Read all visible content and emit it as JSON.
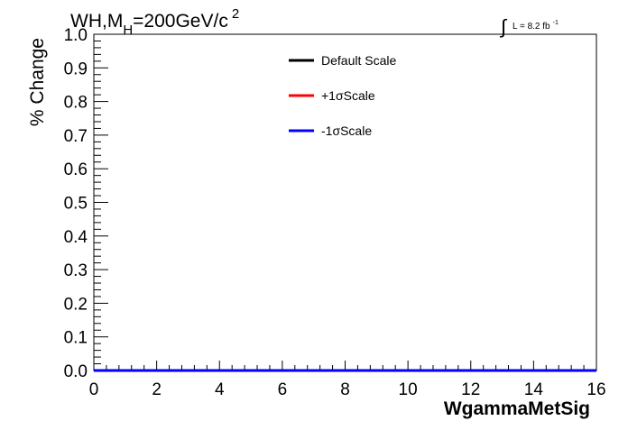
{
  "chart_data": {
    "type": "line",
    "title_parts": {
      "main": "WH,M",
      "sub": "H",
      "rest": "=200GeV/c",
      "sup": "2"
    },
    "lumi_parts": {
      "integral": "∫",
      "text": "L = 8.2 fb",
      "sup": "-1"
    },
    "xlabel": "WgammaMetSig",
    "ylabel": "% Change",
    "xlim": [
      0,
      16
    ],
    "ylim": [
      0,
      1
    ],
    "x_ticks": [
      "0",
      "2",
      "4",
      "6",
      "8",
      "10",
      "12",
      "14",
      "16"
    ],
    "y_ticks": [
      "0.0",
      "0.1",
      "0.2",
      "0.3",
      "0.4",
      "0.5",
      "0.6",
      "0.7",
      "0.8",
      "0.9",
      "1.0"
    ],
    "legend_position": "top-center",
    "series": [
      {
        "name": "Default Scale",
        "color": "#000000",
        "x": [
          0,
          16
        ],
        "y": [
          0,
          0
        ]
      },
      {
        "name": "+1σScale",
        "color": "#ff0000",
        "x": [
          0,
          16
        ],
        "y": [
          0,
          0
        ]
      },
      {
        "name": "-1σScale",
        "color": "#0000ff",
        "x": [
          0,
          16
        ],
        "y": [
          0,
          0
        ]
      }
    ]
  }
}
